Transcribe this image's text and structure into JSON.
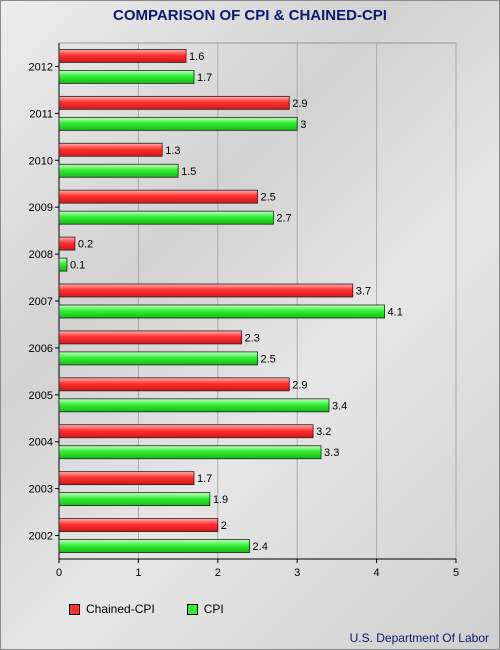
{
  "chart_data": {
    "type": "bar",
    "orientation": "horizontal",
    "title": "COMPARISON OF CPI & CHAINED-CPI",
    "categories": [
      "2012",
      "2011",
      "2010",
      "2009",
      "2008",
      "2007",
      "2006",
      "2005",
      "2004",
      "2003",
      "2002"
    ],
    "series": [
      {
        "name": "Chained-CPI",
        "color": "#ff3030",
        "values": [
          1.6,
          2.9,
          1.3,
          2.5,
          0.2,
          3.7,
          2.3,
          2.9,
          3.2,
          1.7,
          2
        ]
      },
      {
        "name": "CPI",
        "color": "#33ee33",
        "values": [
          1.7,
          3,
          1.5,
          2.7,
          0.1,
          4.1,
          2.5,
          3.4,
          3.3,
          1.9,
          2.4
        ]
      }
    ],
    "value_labels": [
      [
        "1.6",
        "2.9",
        "1.3",
        "2.5",
        "0.2",
        "3.7",
        "2.3",
        "2.9",
        "3.2",
        "1.7",
        "2"
      ],
      [
        "1.7",
        "3",
        "1.5",
        "2.7",
        "0.1",
        "4.1",
        "2.5",
        "3.4",
        "3.3",
        "1.9",
        "2.4"
      ]
    ],
    "xlim": [
      0,
      5
    ],
    "xticks": [
      "0",
      "1",
      "2",
      "3",
      "4",
      "5"
    ],
    "grid": true,
    "legend": "bottom-left"
  },
  "source_note": "U.S. Department Of Labor"
}
